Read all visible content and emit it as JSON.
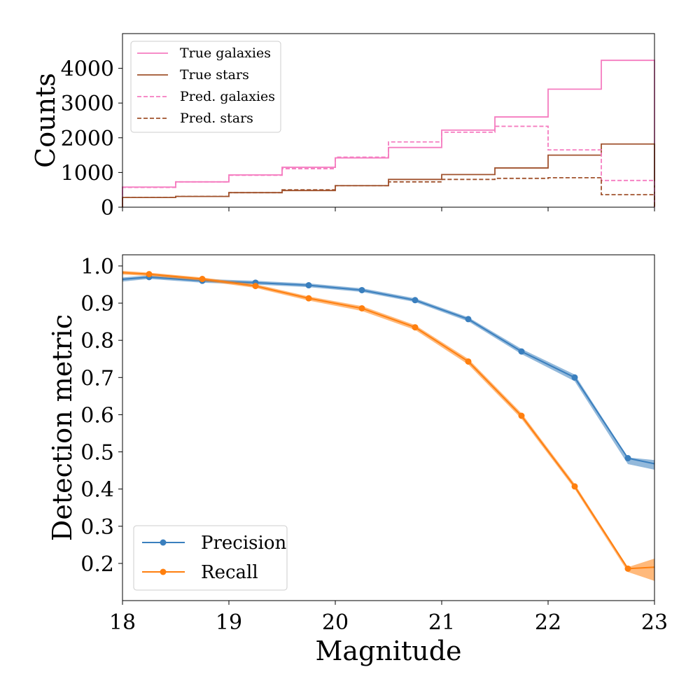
{
  "chart_data": [
    {
      "type": "step-histogram",
      "ylabel": "Counts",
      "xlim": [
        18,
        23
      ],
      "ylim": [
        0,
        5000
      ],
      "yticks": [
        0,
        1000,
        2000,
        3000,
        4000
      ],
      "ytick_labels": [
        "0",
        "1000",
        "2000",
        "3000",
        "4000"
      ],
      "bin_edges": [
        18,
        18.5,
        19,
        19.5,
        20,
        20.5,
        21,
        21.5,
        22,
        22.5,
        23
      ],
      "series": [
        {
          "name": "True galaxies",
          "style": "solid",
          "color": "#f57cc0",
          "values": [
            580,
            730,
            930,
            1150,
            1420,
            1720,
            2220,
            2600,
            3400,
            4230
          ]
        },
        {
          "name": "True stars",
          "style": "solid",
          "color": "#a0522d",
          "values": [
            280,
            310,
            420,
            480,
            620,
            800,
            940,
            1130,
            1500,
            1820
          ]
        },
        {
          "name": "Pred. galaxies",
          "style": "dashed",
          "color": "#f57cc0",
          "values": [
            570,
            730,
            920,
            1110,
            1440,
            1880,
            2160,
            2330,
            1650,
            770
          ]
        },
        {
          "name": "Pred. stars",
          "style": "dashed",
          "color": "#a0522d",
          "values": [
            280,
            310,
            420,
            500,
            620,
            730,
            800,
            830,
            850,
            360
          ]
        }
      ],
      "legend_position": "upper-left",
      "grid": false
    },
    {
      "type": "line",
      "xlabel": "Magnitude",
      "ylabel": "Detection metric",
      "xlim": [
        18,
        23
      ],
      "ylim": [
        0.1,
        1.03
      ],
      "xticks": [
        18,
        19,
        20,
        21,
        22,
        23
      ],
      "xtick_labels": [
        "18",
        "19",
        "20",
        "21",
        "22",
        "23"
      ],
      "yticks": [
        0.2,
        0.3,
        0.4,
        0.5,
        0.6,
        0.7,
        0.8,
        0.9,
        1.0
      ],
      "ytick_labels": [
        "0.2",
        "0.3",
        "0.4",
        "0.5",
        "0.6",
        "0.7",
        "0.8",
        "0.9",
        "1.0"
      ],
      "series": [
        {
          "name": "Precision",
          "color": "#3a7fbe",
          "x": [
            18,
            18.25,
            18.75,
            19.25,
            19.75,
            20.25,
            20.75,
            21.25,
            21.75,
            22.25,
            22.75,
            23
          ],
          "values": [
            0.964,
            0.97,
            0.96,
            0.955,
            0.948,
            0.935,
            0.908,
            0.857,
            0.77,
            0.7,
            0.483,
            0.468
          ],
          "band_lower": [
            0.958,
            0.965,
            0.955,
            0.95,
            0.943,
            0.93,
            0.903,
            0.851,
            0.763,
            0.69,
            0.467,
            0.452
          ],
          "band_upper": [
            0.969,
            0.975,
            0.965,
            0.96,
            0.953,
            0.94,
            0.913,
            0.862,
            0.777,
            0.708,
            0.485,
            0.478
          ]
        },
        {
          "name": "Recall",
          "color": "#ff7f0e",
          "x": [
            18,
            18.25,
            18.75,
            19.25,
            19.75,
            20.25,
            20.75,
            21.25,
            21.75,
            22.25,
            22.75,
            23
          ],
          "values": [
            0.982,
            0.978,
            0.965,
            0.946,
            0.913,
            0.886,
            0.835,
            0.743,
            0.597,
            0.407,
            0.186,
            0.19
          ],
          "band_lower": [
            0.977,
            0.973,
            0.96,
            0.941,
            0.907,
            0.879,
            0.828,
            0.735,
            0.589,
            0.4,
            0.177,
            0.153
          ],
          "band_upper": [
            0.987,
            0.982,
            0.969,
            0.951,
            0.918,
            0.892,
            0.841,
            0.75,
            0.604,
            0.414,
            0.19,
            0.213
          ]
        }
      ],
      "legend_position": "lower-left",
      "grid": false
    }
  ]
}
